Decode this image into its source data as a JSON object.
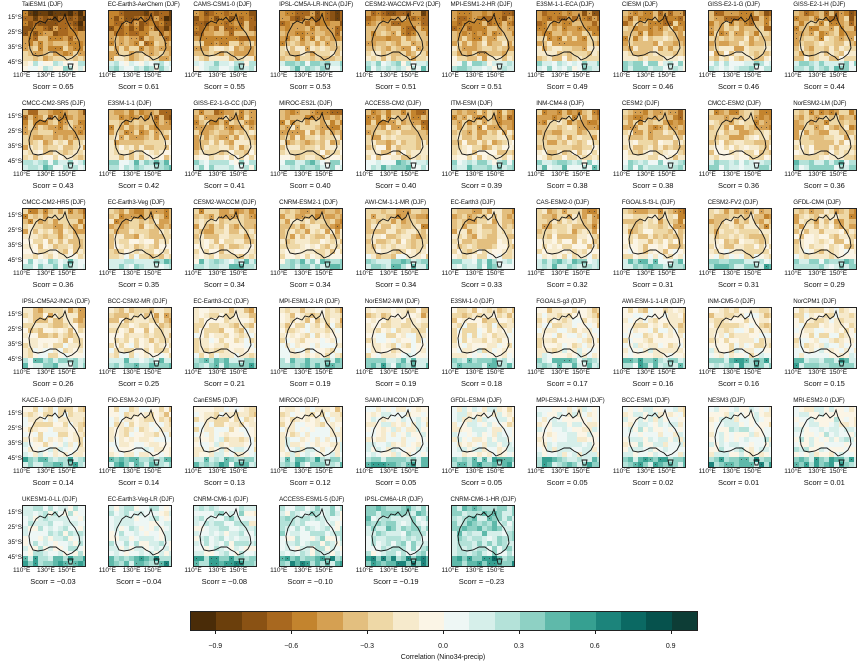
{
  "panels": [
    {
      "title": "TaiESM1 (DJF)",
      "scorr": "Scorr = 0.65",
      "r": 0.65
    },
    {
      "title": "EC-Earth3-AerChem (DJF)",
      "scorr": "Scorr = 0.61",
      "r": 0.61
    },
    {
      "title": "CAMS-CSM1-0 (DJF)",
      "scorr": "Scorr = 0.55",
      "r": 0.55
    },
    {
      "title": "IPSL-CM5A-LR-INCA (DJF)",
      "scorr": "Scorr = 0.53",
      "r": 0.53
    },
    {
      "title": "CESM2-WACCM-FV2 (DJF)",
      "scorr": "Scorr = 0.51",
      "r": 0.51
    },
    {
      "title": "MPI-ESM1-2-HR (DJF)",
      "scorr": "Scorr = 0.51",
      "r": 0.51
    },
    {
      "title": "E3SM-1-1-ECA (DJF)",
      "scorr": "Scorr = 0.49",
      "r": 0.49
    },
    {
      "title": "CIESM (DJF)",
      "scorr": "Scorr = 0.46",
      "r": 0.46
    },
    {
      "title": "GISS-E2-1-G (DJF)",
      "scorr": "Scorr = 0.46",
      "r": 0.46
    },
    {
      "title": "GISS-E2-1-H (DJF)",
      "scorr": "Scorr = 0.44",
      "r": 0.44
    },
    {
      "title": "CMCC-CM2-SR5 (DJF)",
      "scorr": "Scorr = 0.43",
      "r": 0.43
    },
    {
      "title": "E3SM-1-1 (DJF)",
      "scorr": "Scorr = 0.42",
      "r": 0.42
    },
    {
      "title": "GISS-E2-1-G-CC (DJF)",
      "scorr": "Scorr = 0.41",
      "r": 0.41
    },
    {
      "title": "MIROC-ES2L (DJF)",
      "scorr": "Scorr = 0.40",
      "r": 0.4
    },
    {
      "title": "ACCESS-CM2 (DJF)",
      "scorr": "Scorr = 0.40",
      "r": 0.4
    },
    {
      "title": "ITM-ESM (DJF)",
      "scorr": "Scorr = 0.39",
      "r": 0.39
    },
    {
      "title": "INM-CM4-8 (DJF)",
      "scorr": "Scorr = 0.38",
      "r": 0.38
    },
    {
      "title": "CESM2 (DJF)",
      "scorr": "Scorr = 0.38",
      "r": 0.38
    },
    {
      "title": "CMCC-ESM2 (DJF)",
      "scorr": "Scorr = 0.36",
      "r": 0.36
    },
    {
      "title": "NorESM2-LM (DJF)",
      "scorr": "Scorr = 0.36",
      "r": 0.36
    },
    {
      "title": "CMCC-CM2-HR5 (DJF)",
      "scorr": "Scorr = 0.36",
      "r": 0.36
    },
    {
      "title": "EC-Earth3-Veg (DJF)",
      "scorr": "Scorr = 0.35",
      "r": 0.35
    },
    {
      "title": "CESM2-WACCM (DJF)",
      "scorr": "Scorr = 0.34",
      "r": 0.34
    },
    {
      "title": "CNRM-ESM2-1 (DJF)",
      "scorr": "Scorr = 0.34",
      "r": 0.34
    },
    {
      "title": "AWI-CM-1-1-MR (DJF)",
      "scorr": "Scorr = 0.34",
      "r": 0.34
    },
    {
      "title": "EC-Earth3 (DJF)",
      "scorr": "Scorr = 0.33",
      "r": 0.33
    },
    {
      "title": "CAS-ESM2-0 (DJF)",
      "scorr": "Scorr = 0.32",
      "r": 0.32
    },
    {
      "title": "FGOALS-f3-L (DJF)",
      "scorr": "Scorr = 0.31",
      "r": 0.31
    },
    {
      "title": "CESM2-FV2 (DJF)",
      "scorr": "Scorr = 0.31",
      "r": 0.31
    },
    {
      "title": "GFDL-CM4 (DJF)",
      "scorr": "Scorr = 0.29",
      "r": 0.29
    },
    {
      "title": "IPSL-CM5A2-INCA (DJF)",
      "scorr": "Scorr = 0.26",
      "r": 0.26
    },
    {
      "title": "BCC-CSM2-MR (DJF)",
      "scorr": "Scorr = 0.25",
      "r": 0.25
    },
    {
      "title": "EC-Earth3-CC (DJF)",
      "scorr": "Scorr = 0.21",
      "r": 0.21
    },
    {
      "title": "MPI-ESM1-2-LR (DJF)",
      "scorr": "Scorr = 0.19",
      "r": 0.19
    },
    {
      "title": "NorESM2-MM (DJF)",
      "scorr": "Scorr = 0.19",
      "r": 0.19
    },
    {
      "title": "E3SM-1-0 (DJF)",
      "scorr": "Scorr = 0.18",
      "r": 0.18
    },
    {
      "title": "FGOALS-g3 (DJF)",
      "scorr": "Scorr = 0.17",
      "r": 0.17
    },
    {
      "title": "AWI-ESM-1-1-LR (DJF)",
      "scorr": "Scorr = 0.16",
      "r": 0.16
    },
    {
      "title": "INM-CM5-0 (DJF)",
      "scorr": "Scorr = 0.16",
      "r": 0.16
    },
    {
      "title": "NorCPM1 (DJF)",
      "scorr": "Scorr = 0.15",
      "r": 0.15
    },
    {
      "title": "KACE-1-0-G (DJF)",
      "scorr": "Scorr = 0.14",
      "r": 0.14
    },
    {
      "title": "FIO-ESM-2-0 (DJF)",
      "scorr": "Scorr = 0.14",
      "r": 0.14
    },
    {
      "title": "CanESM5 (DJF)",
      "scorr": "Scorr = 0.13",
      "r": 0.13
    },
    {
      "title": "MIROC6 (DJF)",
      "scorr": "Scorr = 0.12",
      "r": 0.12
    },
    {
      "title": "SAM0-UNICON (DJF)",
      "scorr": "Scorr = 0.05",
      "r": 0.05
    },
    {
      "title": "GFDL-ESM4 (DJF)",
      "scorr": "Scorr = 0.05",
      "r": 0.05
    },
    {
      "title": "MPI-ESM-1-2-HAM (DJF)",
      "scorr": "Scorr = 0.05",
      "r": 0.05
    },
    {
      "title": "BCC-ESM1 (DJF)",
      "scorr": "Scorr = 0.02",
      "r": 0.02
    },
    {
      "title": "NESM3 (DJF)",
      "scorr": "Scorr = 0.01",
      "r": 0.01
    },
    {
      "title": "MRI-ESM2-0 (DJF)",
      "scorr": "Scorr = 0.01",
      "r": 0.01
    },
    {
      "title": "UKESM1-0-LL (DJF)",
      "scorr": "Scorr = −0.03",
      "r": -0.03
    },
    {
      "title": "EC-Earth3-Veg-LR (DJF)",
      "scorr": "Scorr = −0.04",
      "r": -0.04
    },
    {
      "title": "CNRM-CM6-1 (DJF)",
      "scorr": "Scorr = −0.08",
      "r": -0.08
    },
    {
      "title": "ACCESS-ESM1-5 (DJF)",
      "scorr": "Scorr = −0.10",
      "r": -0.1
    },
    {
      "title": "IPSL-CM6A-LR (DJF)",
      "scorr": "Scorr = −0.19",
      "r": -0.19
    },
    {
      "title": "CNRM-CM6-1-HR (DJF)",
      "scorr": "Scorr = −0.23",
      "r": -0.23
    }
  ],
  "axes": {
    "y_ticks": [
      "15°S",
      "25°S",
      "35°S",
      "45°S"
    ],
    "x_ticks": [
      "110°E",
      "130°E",
      "150°E"
    ]
  },
  "colorbar": {
    "label": "Correlation (Nino34-precip)",
    "ticks": [
      "−0.9",
      "−0.6",
      "−0.3",
      "0.0",
      "0.3",
      "0.6",
      "0.9"
    ],
    "colors": [
      "#4a2c08",
      "#6b3f0c",
      "#8a5214",
      "#a8681f",
      "#c3842e",
      "#d5a052",
      "#e3bf7f",
      "#eed8a6",
      "#f6eacc",
      "#fbf5e6",
      "#eef7f5",
      "#d6efea",
      "#b4e2d9",
      "#8ed1c4",
      "#5fb9aa",
      "#36a091",
      "#1c847b",
      "#0b6963",
      "#06524d",
      "#0d3d36"
    ]
  }
}
